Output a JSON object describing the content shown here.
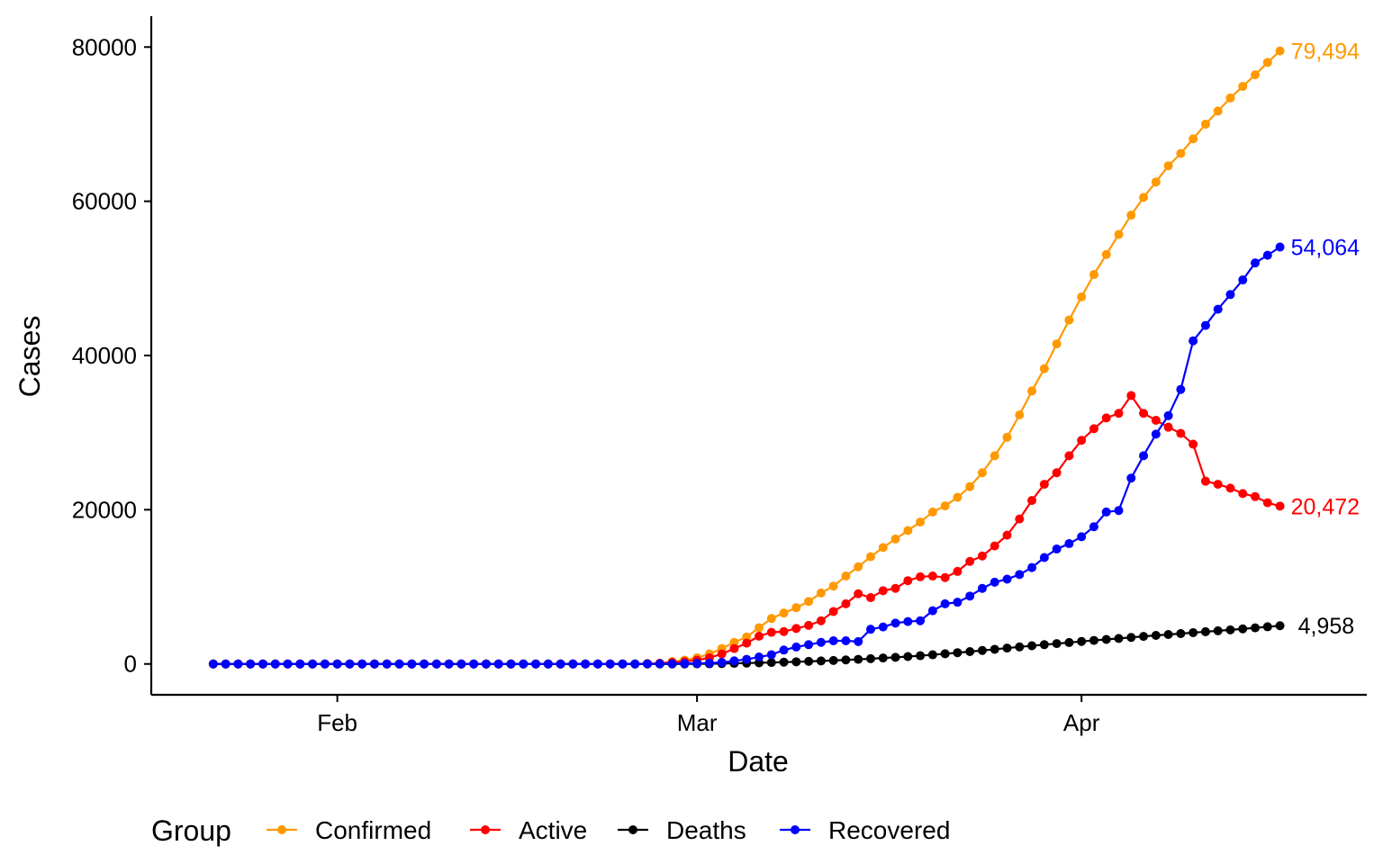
{
  "chart_data": {
    "type": "line",
    "xlabel": "Date",
    "ylabel": "Cases",
    "x_ticks": [
      "Feb",
      "Mar",
      "Apr"
    ],
    "x_tick_dates": [
      "2020-02-01",
      "2020-03-01",
      "2020-04-01"
    ],
    "xlim": [
      "2020-01-17",
      "2020-04-24"
    ],
    "y_ticks": [
      "0",
      "20000",
      "40000",
      "60000",
      "80000"
    ],
    "ylim": [
      -4000,
      84000
    ],
    "grid": false,
    "legend_position": "bottom",
    "legend_title": "Group",
    "dates": [
      "2020-01-22",
      "2020-01-23",
      "2020-01-24",
      "2020-01-25",
      "2020-01-26",
      "2020-01-27",
      "2020-01-28",
      "2020-01-29",
      "2020-01-30",
      "2020-01-31",
      "2020-02-01",
      "2020-02-02",
      "2020-02-03",
      "2020-02-04",
      "2020-02-05",
      "2020-02-06",
      "2020-02-07",
      "2020-02-08",
      "2020-02-09",
      "2020-02-10",
      "2020-02-11",
      "2020-02-12",
      "2020-02-13",
      "2020-02-14",
      "2020-02-15",
      "2020-02-16",
      "2020-02-17",
      "2020-02-18",
      "2020-02-19",
      "2020-02-20",
      "2020-02-21",
      "2020-02-22",
      "2020-02-23",
      "2020-02-24",
      "2020-02-25",
      "2020-02-26",
      "2020-02-27",
      "2020-02-28",
      "2020-02-29",
      "2020-03-01",
      "2020-03-02",
      "2020-03-03",
      "2020-03-04",
      "2020-03-05",
      "2020-03-06",
      "2020-03-07",
      "2020-03-08",
      "2020-03-09",
      "2020-03-10",
      "2020-03-11",
      "2020-03-12",
      "2020-03-13",
      "2020-03-14",
      "2020-03-15",
      "2020-03-16",
      "2020-03-17",
      "2020-03-18",
      "2020-03-19",
      "2020-03-20",
      "2020-03-21",
      "2020-03-22",
      "2020-03-23",
      "2020-03-24",
      "2020-03-25",
      "2020-03-26",
      "2020-03-27",
      "2020-03-28",
      "2020-03-29",
      "2020-03-30",
      "2020-03-31",
      "2020-04-01",
      "2020-04-02",
      "2020-04-03",
      "2020-04-04",
      "2020-04-05",
      "2020-04-06",
      "2020-04-07",
      "2020-04-08",
      "2020-04-09",
      "2020-04-10",
      "2020-04-11",
      "2020-04-12",
      "2020-04-13",
      "2020-04-14",
      "2020-04-15",
      "2020-04-16",
      "2020-04-17"
    ],
    "series": [
      {
        "name": "Confirmed",
        "color": "#FF9900",
        "end_label": "79,494",
        "values": [
          0,
          0,
          0,
          0,
          0,
          0,
          0,
          0,
          0,
          0,
          0,
          0,
          0,
          0,
          0,
          0,
          0,
          0,
          0,
          0,
          0,
          0,
          0,
          0,
          0,
          0,
          0,
          0,
          0,
          0,
          0,
          0,
          0,
          0,
          0,
          50,
          100,
          300,
          500,
          800,
          1300,
          2000,
          2800,
          3500,
          4700,
          5900,
          6600,
          7300,
          8100,
          9200,
          10100,
          11400,
          12600,
          13900,
          15100,
          16200,
          17300,
          18400,
          19700,
          20500,
          21600,
          23000,
          24800,
          27000,
          29400,
          32300,
          35400,
          38300,
          41500,
          44600,
          47600,
          50500,
          53100,
          55700,
          58200,
          60500,
          62500,
          64600,
          66200,
          68100,
          70000,
          71700,
          73400,
          74900,
          76400,
          78000,
          79494
        ]
      },
      {
        "name": "Active",
        "color": "#FF0000",
        "end_label": "20,472",
        "values": [
          0,
          0,
          0,
          0,
          0,
          0,
          0,
          0,
          0,
          0,
          0,
          0,
          0,
          0,
          0,
          0,
          0,
          0,
          0,
          0,
          0,
          0,
          0,
          0,
          0,
          0,
          0,
          0,
          0,
          0,
          0,
          0,
          0,
          0,
          0,
          40,
          80,
          200,
          300,
          500,
          800,
          1300,
          2000,
          2700,
          3600,
          4100,
          4200,
          4600,
          5000,
          5600,
          6800,
          7800,
          9100,
          8600,
          9500,
          9800,
          10800,
          11300,
          11400,
          11200,
          12000,
          13300,
          14000,
          15300,
          16700,
          18800,
          21200,
          23300,
          24800,
          27000,
          29000,
          30500,
          31900,
          32500,
          34800,
          32500,
          31600,
          30700,
          29900,
          28500,
          23700,
          23300,
          22800,
          22100,
          21700,
          20900,
          20472
        ]
      },
      {
        "name": "Deaths",
        "color": "#000000",
        "end_label": "4,958",
        "values": [
          0,
          0,
          0,
          0,
          0,
          0,
          0,
          0,
          0,
          0,
          0,
          0,
          0,
          0,
          0,
          0,
          0,
          0,
          0,
          0,
          0,
          0,
          0,
          0,
          0,
          0,
          0,
          0,
          0,
          0,
          0,
          0,
          0,
          0,
          0,
          0,
          0,
          0,
          0,
          10,
          20,
          50,
          80,
          110,
          150,
          190,
          230,
          280,
          330,
          390,
          450,
          520,
          600,
          680,
          770,
          860,
          960,
          1070,
          1190,
          1320,
          1460,
          1600,
          1750,
          1900,
          2060,
          2210,
          2360,
          2500,
          2640,
          2780,
          2920,
          3050,
          3180,
          3310,
          3440,
          3570,
          3700,
          3820,
          3940,
          4060,
          4180,
          4300,
          4420,
          4550,
          4680,
          4820,
          4958
        ]
      },
      {
        "name": "Recovered",
        "color": "#0000FF",
        "end_label": "54,064",
        "values": [
          0,
          0,
          0,
          0,
          0,
          0,
          0,
          0,
          0,
          0,
          0,
          0,
          0,
          0,
          0,
          0,
          0,
          0,
          0,
          0,
          0,
          0,
          0,
          0,
          0,
          0,
          0,
          0,
          0,
          0,
          0,
          0,
          0,
          0,
          0,
          10,
          20,
          30,
          50,
          80,
          120,
          200,
          400,
          600,
          900,
          1200,
          1800,
          2200,
          2500,
          2800,
          3000,
          3000,
          2900,
          4500,
          4800,
          5300,
          5500,
          5600,
          6900,
          7800,
          8000,
          8800,
          9800,
          10600,
          11000,
          11600,
          12500,
          13800,
          14900,
          15600,
          16500,
          17800,
          19700,
          19900,
          24100,
          27000,
          29800,
          32200,
          35600,
          41900,
          43900,
          46000,
          47900,
          49800,
          52000,
          53000,
          54064
        ]
      }
    ]
  }
}
